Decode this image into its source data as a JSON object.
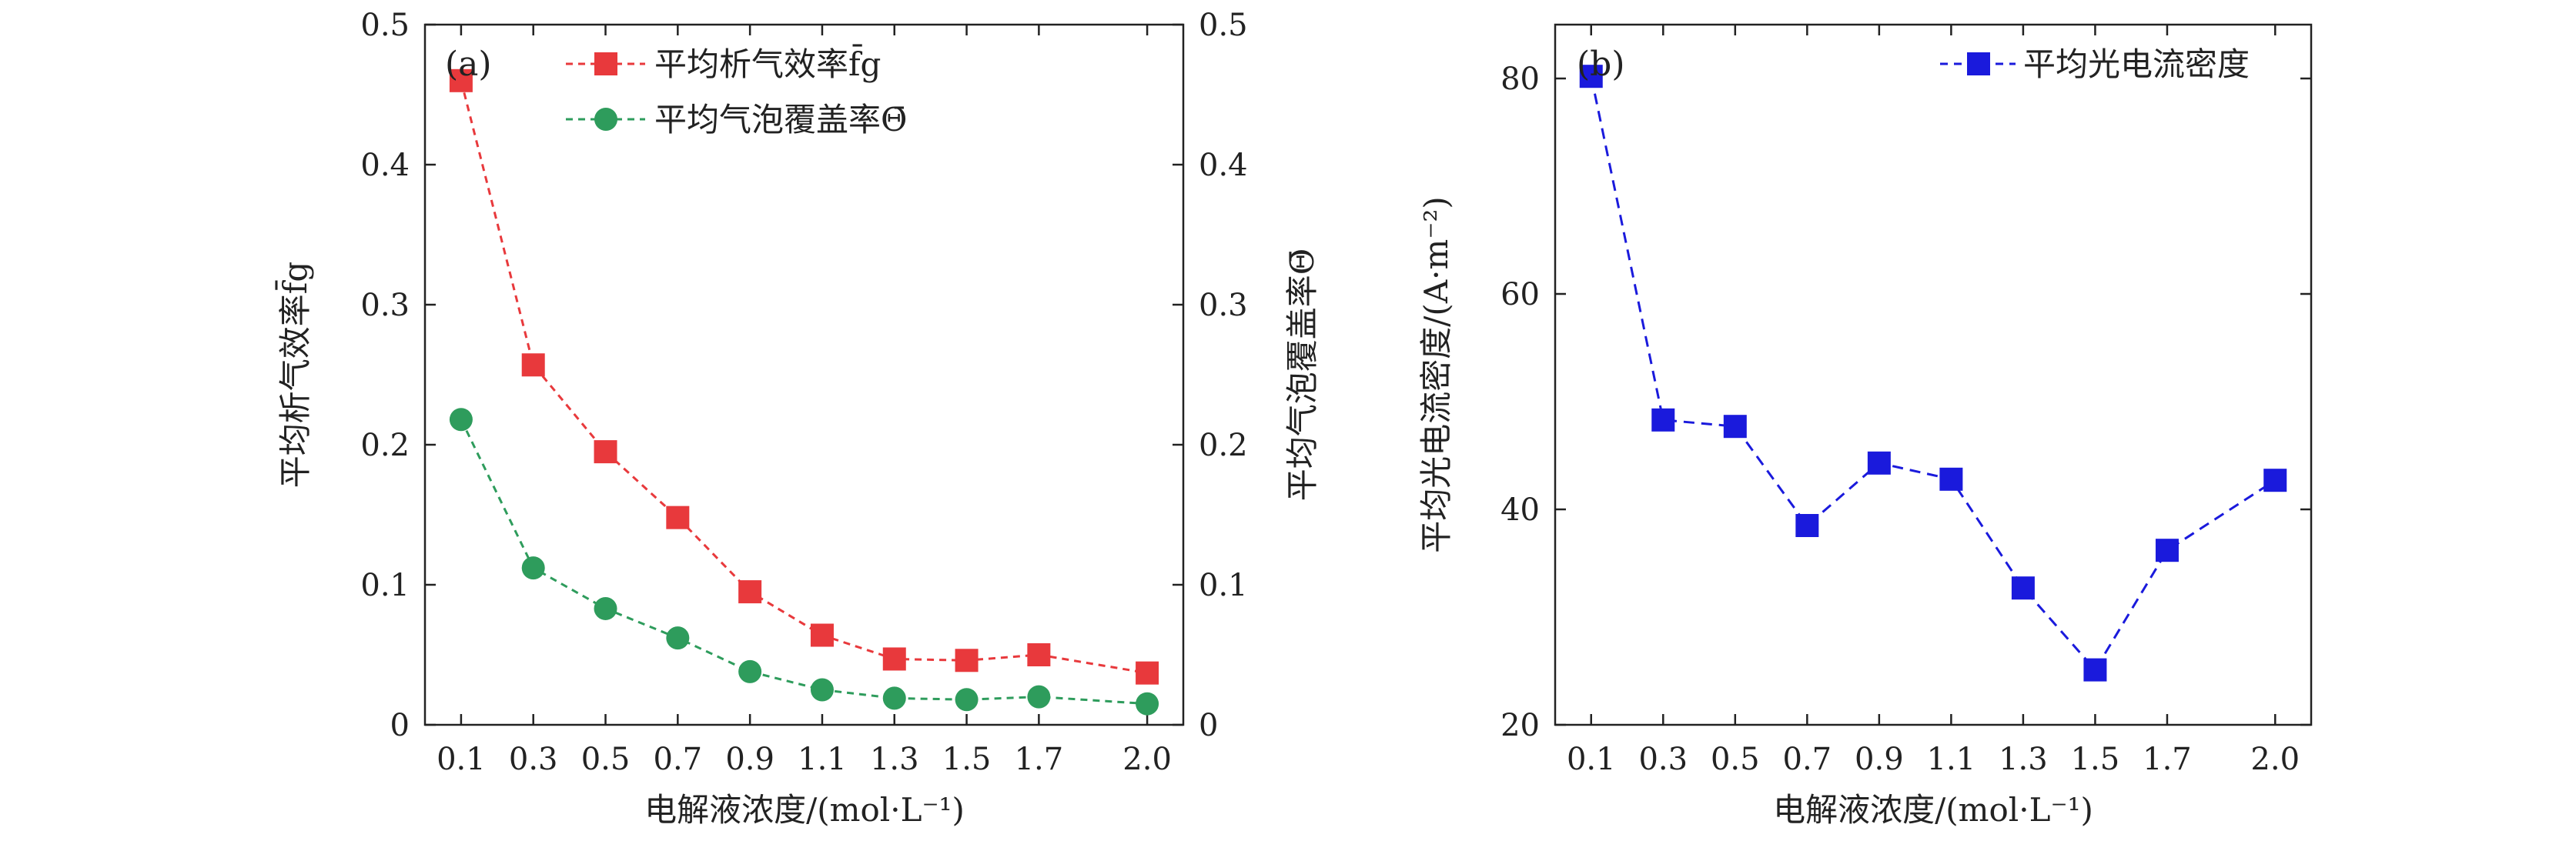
{
  "chart_data": [
    {
      "type": "line",
      "panel_label": "(a)",
      "categories": [
        "0.1",
        "0.3",
        "0.5",
        "0.7",
        "0.9",
        "1.1",
        "1.3",
        "1.5",
        "1.7",
        "2.0"
      ],
      "x": [
        0.1,
        0.3,
        0.5,
        0.7,
        0.9,
        1.1,
        1.3,
        1.5,
        1.7,
        2.0
      ],
      "xlabel": "电解液浓度/(mol·L⁻¹)",
      "ylabel_left": "平均析气效率f̄g",
      "ylabel_right": "平均气泡覆盖率Θ̄",
      "ylim": [
        0,
        0.5
      ],
      "yticks": [
        "0",
        "0.1",
        "0.2",
        "0.3",
        "0.4",
        "0.5"
      ],
      "ytick_values": [
        0,
        0.1,
        0.2,
        0.3,
        0.4,
        0.5
      ],
      "series": [
        {
          "name": "平均析气效率f̄g",
          "color": "#e8393c",
          "marker": "square",
          "values": [
            0.46,
            0.257,
            0.195,
            0.148,
            0.095,
            0.064,
            0.047,
            0.046,
            0.05,
            0.037
          ]
        },
        {
          "name": "平均气泡覆盖率Θ̄",
          "color": "#2e9c5c",
          "marker": "circle",
          "values": [
            0.218,
            0.112,
            0.083,
            0.062,
            0.038,
            0.025,
            0.019,
            0.018,
            0.02,
            0.015
          ]
        }
      ]
    },
    {
      "type": "line",
      "panel_label": "(b)",
      "categories": [
        "0.1",
        "0.3",
        "0.5",
        "0.7",
        "0.9",
        "1.1",
        "1.3",
        "1.5",
        "1.7",
        "2.0"
      ],
      "x": [
        0.1,
        0.3,
        0.5,
        0.7,
        0.9,
        1.1,
        1.3,
        1.5,
        1.7,
        2.0
      ],
      "xlabel": "电解液浓度/(mol·L⁻¹)",
      "ylabel": "平均光电流密度/(A·m⁻²)",
      "ylim": [
        20,
        85
      ],
      "yticks": [
        "20",
        "40",
        "60",
        "80"
      ],
      "ytick_values": [
        20,
        40,
        60,
        80
      ],
      "series": [
        {
          "name": "平均光电流密度",
          "color": "#1a1adc",
          "marker": "square",
          "values": [
            80.2,
            48.3,
            47.7,
            38.5,
            44.3,
            42.8,
            32.7,
            25.1,
            36.2,
            42.7
          ]
        }
      ]
    }
  ]
}
